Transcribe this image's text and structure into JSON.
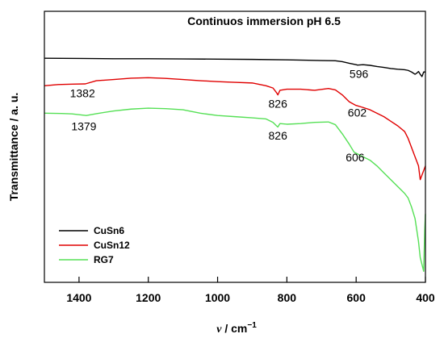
{
  "chart_data": {
    "type": "line",
    "title": "Continuos immersion pH 6.5",
    "xlabel": "ν / cm⁻¹",
    "ylabel": "Transmittance / a. u.",
    "xlim": [
      1500,
      400
    ],
    "x_reversed": true,
    "ylim": [
      0,
      1
    ],
    "y_ticks_shown": false,
    "grid": false,
    "legend_position": "bottom-left",
    "x_ticks": [
      1400,
      1200,
      1000,
      800,
      600,
      400
    ],
    "x_tick_labels": [
      "1400",
      "1200",
      "1000",
      "800",
      "600",
      "400"
    ],
    "series": [
      {
        "name": "CuSn6",
        "color": "#000000",
        "x": [
          1500,
          1400,
          1300,
          1200,
          1100,
          1000,
          900,
          800,
          700,
          660,
          640,
          620,
          600,
          596,
          580,
          560,
          540,
          520,
          500,
          480,
          460,
          450,
          440,
          430,
          425,
          420,
          415,
          410,
          405,
          400
        ],
        "y": [
          0.95,
          0.949,
          0.948,
          0.948,
          0.947,
          0.946,
          0.945,
          0.943,
          0.94,
          0.939,
          0.935,
          0.928,
          0.922,
          0.92,
          0.922,
          0.919,
          0.914,
          0.91,
          0.905,
          0.902,
          0.9,
          0.897,
          0.89,
          0.88,
          0.885,
          0.892,
          0.88,
          0.87,
          0.89,
          0.89
        ]
      },
      {
        "name": "CuSn12",
        "color": "#e00000",
        "x": [
          1500,
          1460,
          1420,
          1382,
          1350,
          1300,
          1250,
          1200,
          1150,
          1100,
          1050,
          1000,
          950,
          900,
          860,
          840,
          830,
          826,
          820,
          800,
          760,
          720,
          680,
          660,
          640,
          620,
          602,
          580,
          560,
          540,
          520,
          500,
          480,
          460,
          450,
          440,
          430,
          420,
          415,
          410,
          405,
          400
        ],
        "y": [
          0.83,
          0.835,
          0.837,
          0.838,
          0.852,
          0.857,
          0.863,
          0.865,
          0.862,
          0.857,
          0.852,
          0.848,
          0.845,
          0.842,
          0.83,
          0.82,
          0.8,
          0.79,
          0.81,
          0.815,
          0.815,
          0.81,
          0.818,
          0.812,
          0.79,
          0.76,
          0.745,
          0.735,
          0.725,
          0.71,
          0.695,
          0.675,
          0.655,
          0.63,
          0.6,
          0.56,
          0.52,
          0.48,
          0.42,
          0.44,
          0.46,
          0.48
        ]
      },
      {
        "name": "RG7",
        "color": "#55e055",
        "x": [
          1500,
          1450,
          1420,
          1379,
          1350,
          1300,
          1250,
          1200,
          1150,
          1100,
          1050,
          1000,
          950,
          900,
          860,
          840,
          830,
          826,
          820,
          800,
          760,
          720,
          680,
          660,
          640,
          620,
          606,
          580,
          560,
          540,
          520,
          500,
          480,
          460,
          450,
          440,
          430,
          420,
          415,
          410,
          405,
          402,
          400
        ],
        "y": [
          0.71,
          0.709,
          0.707,
          0.7,
          0.708,
          0.72,
          0.728,
          0.732,
          0.73,
          0.725,
          0.71,
          0.7,
          0.695,
          0.69,
          0.685,
          0.67,
          0.655,
          0.65,
          0.665,
          0.662,
          0.665,
          0.67,
          0.672,
          0.66,
          0.62,
          0.575,
          0.54,
          0.52,
          0.505,
          0.48,
          0.45,
          0.42,
          0.39,
          0.36,
          0.34,
          0.3,
          0.25,
          0.15,
          0.08,
          0.05,
          0.02,
          0.2,
          0.27
        ]
      }
    ],
    "annotations": [
      {
        "text": "596",
        "x": 592,
        "y": 0.865
      },
      {
        "text": "1382",
        "x": 1390,
        "y": 0.78
      },
      {
        "text": "826",
        "x": 826,
        "y": 0.735
      },
      {
        "text": "602",
        "x": 597,
        "y": 0.695
      },
      {
        "text": "1379",
        "x": 1386,
        "y": 0.635
      },
      {
        "text": "826",
        "x": 826,
        "y": 0.595
      },
      {
        "text": "606",
        "x": 603,
        "y": 0.5
      }
    ]
  }
}
